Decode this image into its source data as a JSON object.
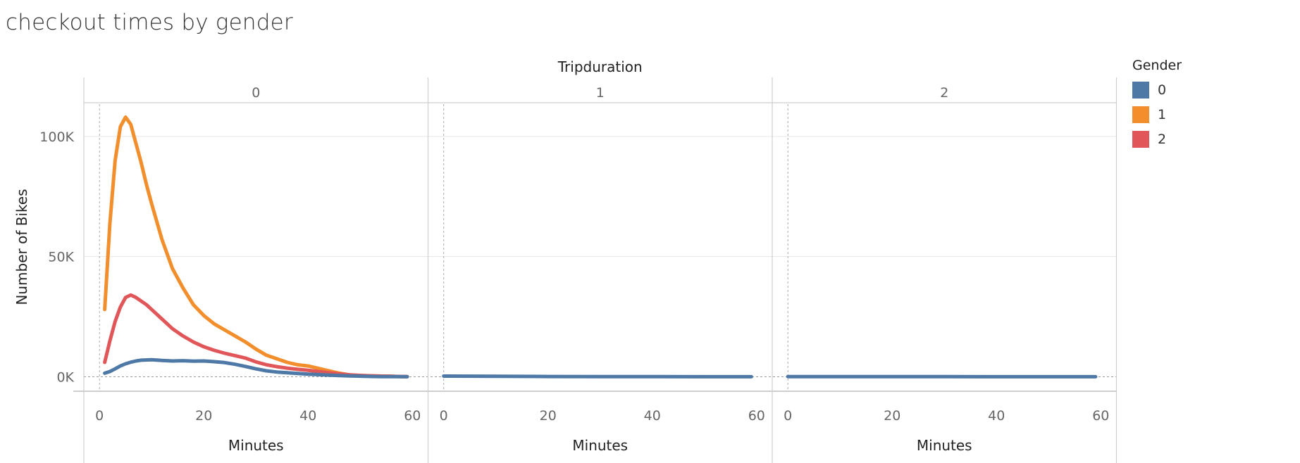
{
  "title": "checkout times by gender",
  "legend": {
    "title": "Gender",
    "items": [
      {
        "label": "0",
        "color": "#4e79a7"
      },
      {
        "label": "1",
        "color": "#f28e2b"
      },
      {
        "label": "2",
        "color": "#e15759"
      }
    ]
  },
  "chart_data": {
    "type": "line",
    "column_header": "Tripduration",
    "ylabel": "Number of Bikes",
    "xlabel": "Minutes",
    "ylim": [
      -6000,
      114000
    ],
    "xlim": [
      -3,
      63
    ],
    "y_ticks": [
      0,
      50000,
      100000
    ],
    "y_tick_labels": [
      "0K",
      "50K",
      "100K"
    ],
    "x_ticks": [
      0,
      20,
      40,
      60
    ],
    "x_tick_labels": [
      "0",
      "20",
      "40",
      "60"
    ],
    "panels": [
      {
        "label": "0",
        "series": [
          {
            "name": "1",
            "color": "#f28e2b",
            "x": [
              1,
              2,
              3,
              4,
              5,
              6,
              7,
              8,
              9,
              10,
              12,
              14,
              16,
              18,
              20,
              22,
              24,
              26,
              28,
              30,
              32,
              34,
              36,
              38,
              40,
              42,
              44,
              46,
              48,
              50,
              52,
              54,
              56,
              58,
              59
            ],
            "y": [
              28000,
              64000,
              90000,
              104000,
              108000,
              105000,
              97000,
              89000,
              80000,
              72000,
              57000,
              45000,
              37000,
              30000,
              25500,
              22000,
              19500,
              17000,
              14500,
              11500,
              9000,
              7500,
              6000,
              5000,
              4500,
              3500,
              2500,
              1500,
              800,
              500,
              400,
              300,
              200,
              100,
              100
            ]
          },
          {
            "name": "2",
            "color": "#e15759",
            "x": [
              1,
              2,
              3,
              4,
              5,
              6,
              7,
              8,
              9,
              10,
              12,
              14,
              16,
              18,
              20,
              22,
              24,
              26,
              28,
              30,
              32,
              34,
              36,
              38,
              40,
              42,
              44,
              46,
              48,
              50,
              52,
              54,
              56,
              58,
              59
            ],
            "y": [
              6000,
              15000,
              23000,
              29000,
              33000,
              34000,
              33000,
              31500,
              30000,
              28000,
              24000,
              20000,
              17000,
              14500,
              12500,
              11000,
              9800,
              8800,
              7800,
              6200,
              5000,
              4200,
              3600,
              3100,
              2700,
              2200,
              1700,
              1200,
              800,
              600,
              400,
              300,
              200,
              100,
              100
            ]
          },
          {
            "name": "0",
            "color": "#4e79a7",
            "x": [
              1,
              2,
              3,
              4,
              5,
              6,
              7,
              8,
              10,
              12,
              14,
              16,
              18,
              20,
              22,
              24,
              26,
              28,
              30,
              32,
              34,
              36,
              38,
              40,
              42,
              44,
              46,
              48,
              50,
              52,
              54,
              56,
              58,
              59
            ],
            "y": [
              1500,
              2200,
              3300,
              4500,
              5400,
              6100,
              6600,
              6900,
              7100,
              6800,
              6600,
              6700,
              6500,
              6600,
              6300,
              5900,
              5200,
              4300,
              3300,
              2500,
              2000,
              1700,
              1400,
              1100,
              900,
              700,
              500,
              350,
              250,
              150,
              100,
              80,
              50,
              40
            ]
          }
        ]
      },
      {
        "label": "1",
        "series": [
          {
            "name": "0",
            "color": "#4e79a7",
            "x": [
              0,
              5,
              10,
              20,
              30,
              40,
              50,
              59
            ],
            "y": [
              300,
              250,
              200,
              120,
              80,
              50,
              30,
              20
            ]
          }
        ]
      },
      {
        "label": "2",
        "series": [
          {
            "name": "0",
            "color": "#4e79a7",
            "x": [
              0,
              10,
              20,
              30,
              40,
              50,
              59
            ],
            "y": [
              80,
              70,
              60,
              50,
              40,
              30,
              20
            ]
          }
        ]
      }
    ]
  }
}
